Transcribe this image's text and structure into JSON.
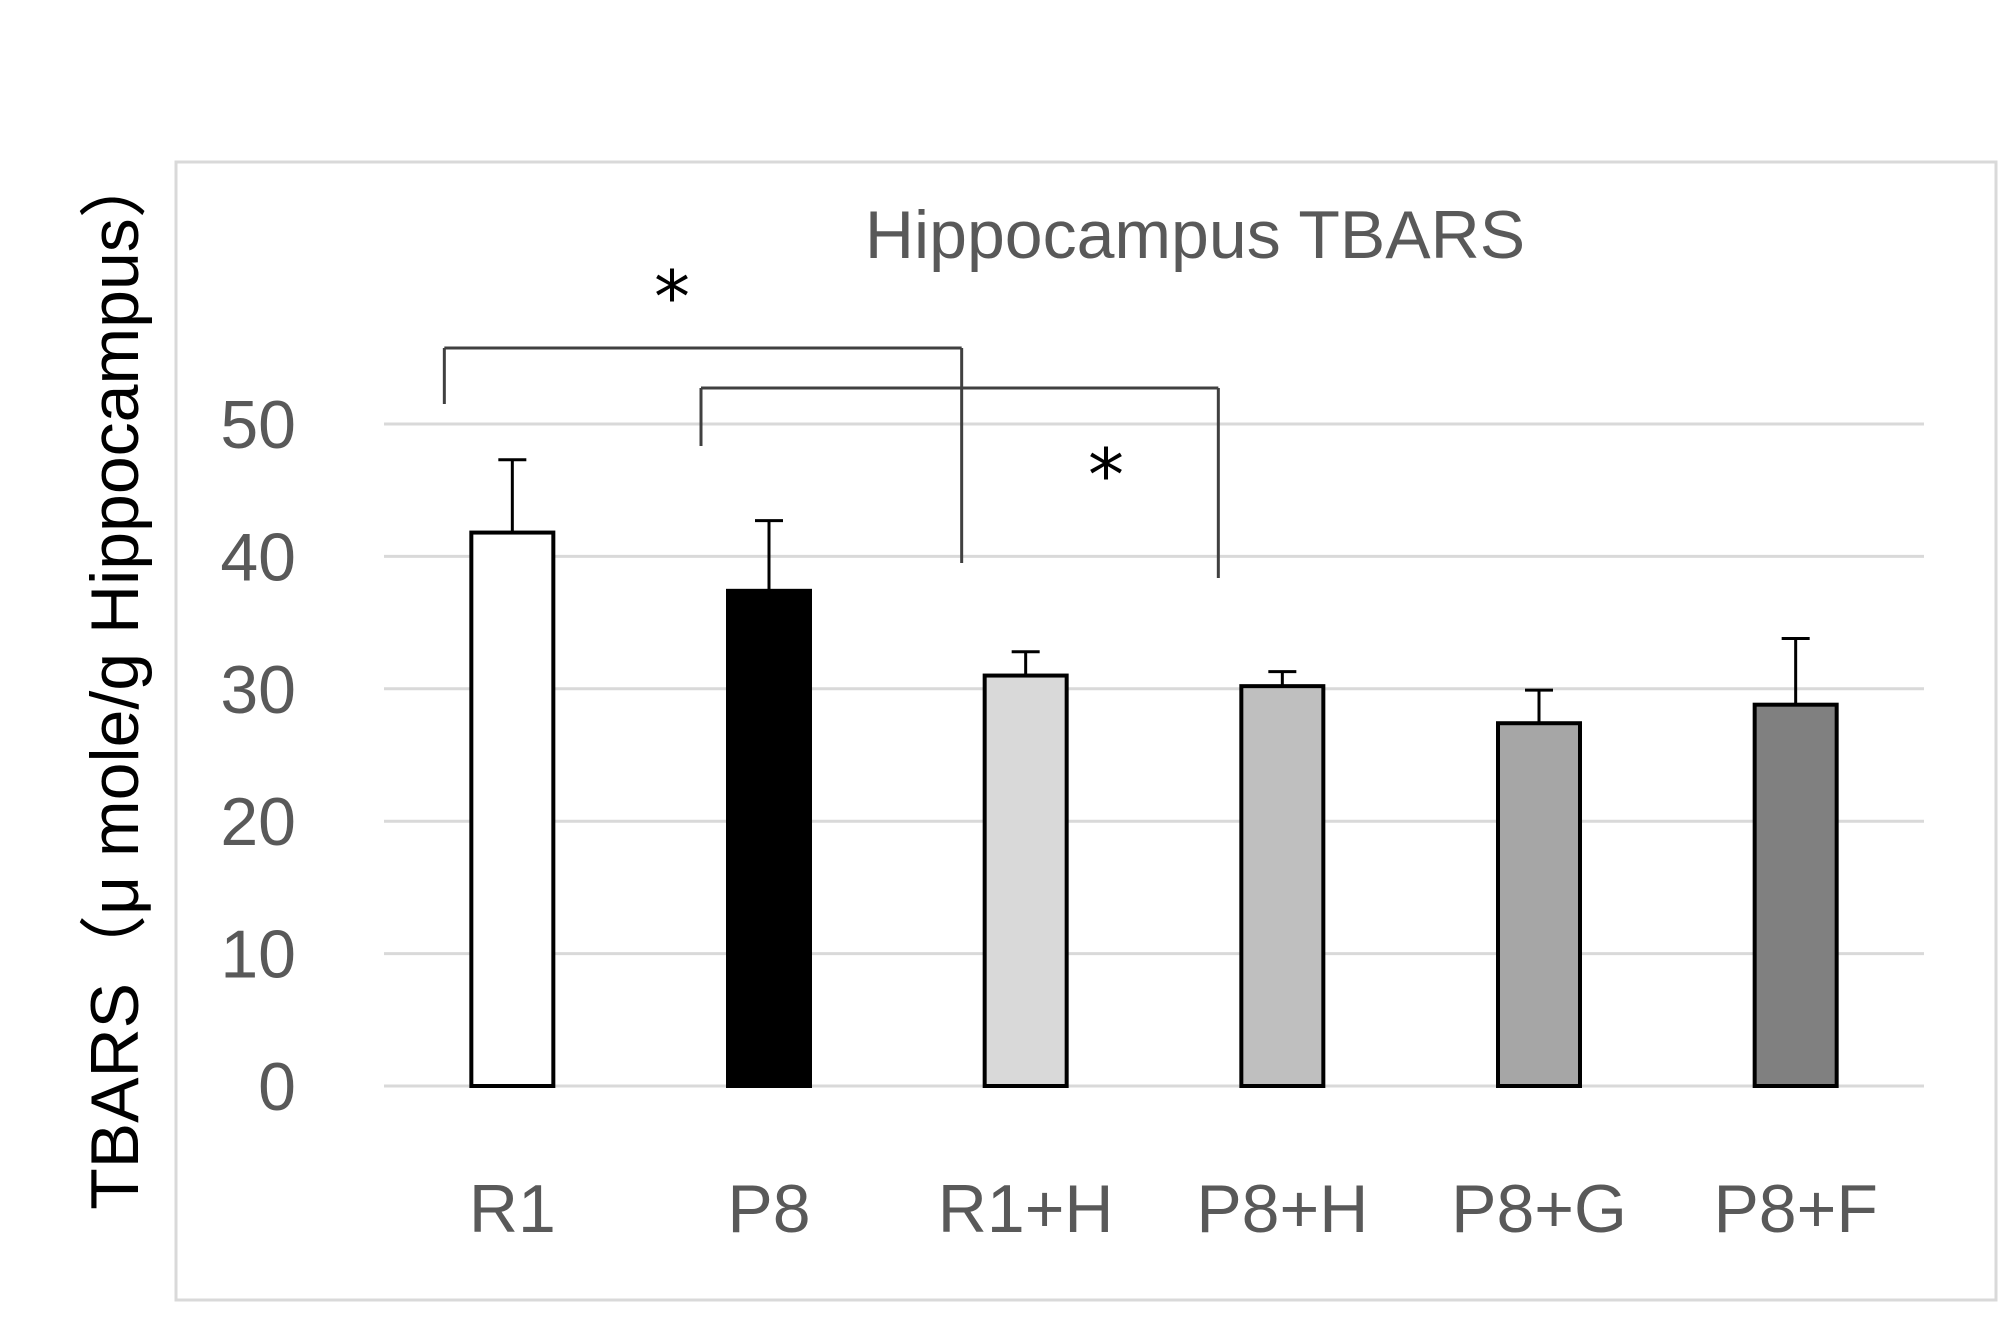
{
  "chart_data": {
    "type": "bar",
    "title": "Hippocampus TBARS",
    "xlabel": "",
    "ylabel": "TBARS（μ mole/g Hippocampus）",
    "categories": [
      "R1",
      "P8",
      "R1+H",
      "P8+H",
      "P8+G",
      "P8+F"
    ],
    "values": [
      41.8,
      37.4,
      31.0,
      30.2,
      27.4,
      28.8
    ],
    "errors": [
      5.5,
      5.3,
      1.8,
      1.1,
      2.5,
      5.0
    ],
    "colors": [
      "#ffffff",
      "#000000",
      "#d9d9d9",
      "#bfbfbf",
      "#a6a6a6",
      "#808080"
    ],
    "ylim": [
      0,
      50
    ],
    "yticks": [
      0,
      10,
      20,
      30,
      40,
      50
    ],
    "grid": true,
    "significance": [
      {
        "from": "R1",
        "to": "R1+H",
        "label": "*"
      },
      {
        "from": "P8",
        "to": "P8+H",
        "label": "*"
      }
    ]
  }
}
